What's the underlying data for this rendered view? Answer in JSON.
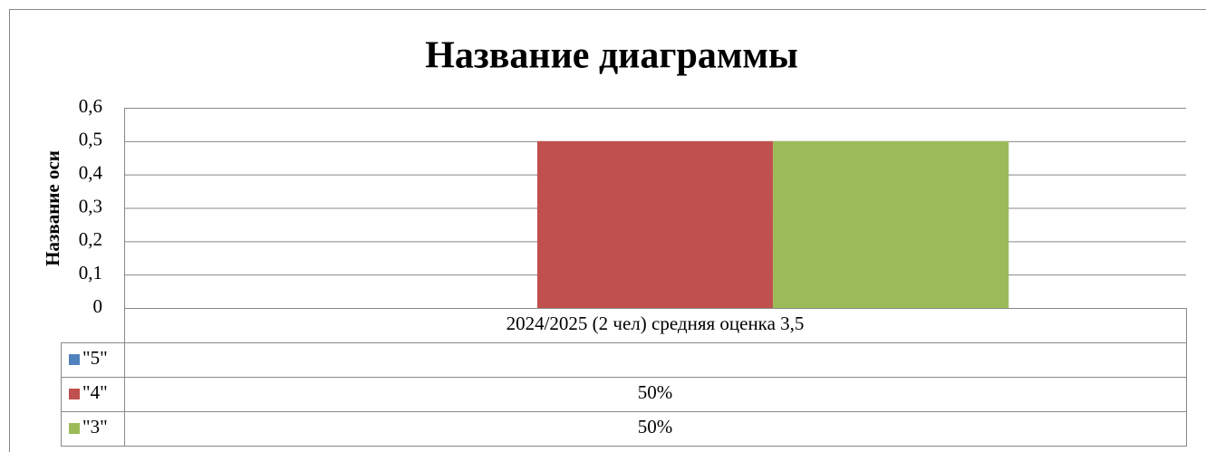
{
  "chart_data": {
    "type": "bar",
    "title": "Название диаграммы",
    "y_label": "Название оси",
    "categories": [
      "2024/2025 (2 чел) средняя оценка 3,5"
    ],
    "series": [
      {
        "name": "\"5\"",
        "color": "#4f81bd",
        "values": [
          null
        ]
      },
      {
        "name": "\"4\"",
        "color": "#c0504d",
        "values": [
          0.5
        ],
        "value_labels": [
          "50%"
        ]
      },
      {
        "name": "\"3\"",
        "color": "#9bbb59",
        "values": [
          0.5
        ],
        "value_labels": [
          "50%"
        ]
      }
    ],
    "ylim": [
      0,
      0.6
    ],
    "yticks": [
      0,
      {
        "value": 0.1,
        "label": "0,1"
      },
      {
        "value": 0.2,
        "label": "0,2"
      },
      {
        "value": 0.3,
        "label": "0,3"
      },
      {
        "value": 0.4,
        "label": "0,4"
      },
      {
        "value": 0.5,
        "label": "0,5"
      },
      {
        "value": 0.6,
        "label": "0,6"
      }
    ],
    "grid": true,
    "data_table": true
  }
}
